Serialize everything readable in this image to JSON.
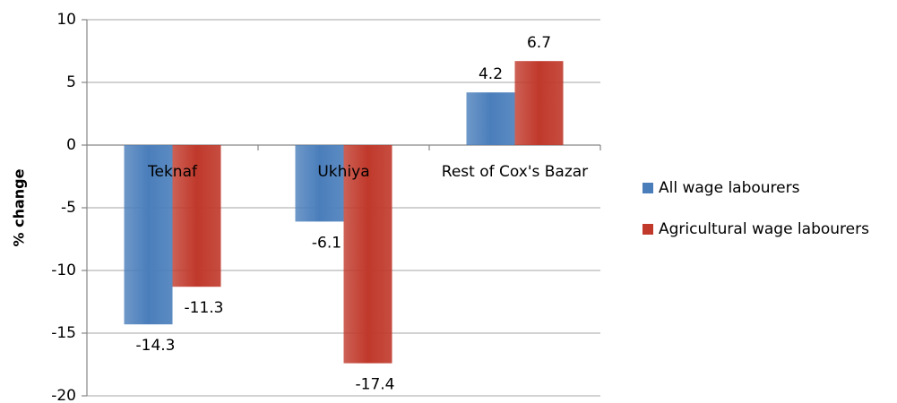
{
  "chart_data": {
    "type": "bar",
    "y_label": "% change",
    "categories": [
      "Teknaf",
      "Ukhiya",
      "Rest of Cox's Bazar"
    ],
    "series": [
      {
        "name": "All wage labourers",
        "color": "#4a7ebb",
        "values": [
          -14.3,
          -6.1,
          4.2
        ]
      },
      {
        "name": "Agricultural wage labourers",
        "color": "#c0392b",
        "values": [
          -11.3,
          -17.4,
          6.7
        ]
      }
    ],
    "ylim": [
      -20,
      10
    ],
    "yticks": [
      -20,
      -15,
      -10,
      -5,
      0,
      5,
      10
    ],
    "grid": true,
    "legend": "right"
  }
}
